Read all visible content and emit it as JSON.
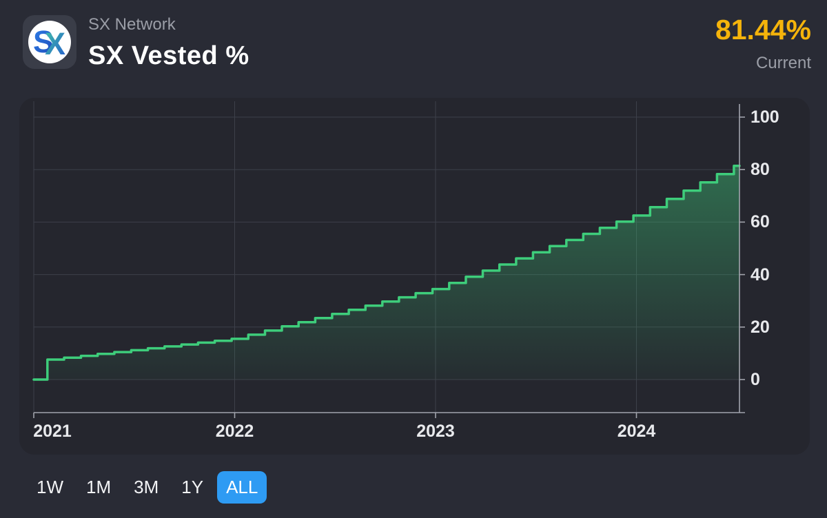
{
  "header": {
    "network_label": "SX Network",
    "title": "SX Vested %",
    "current_value": "81.44%",
    "current_label": "Current",
    "logo": {
      "letter_s": "S",
      "letter_x": "X"
    }
  },
  "colors": {
    "page_background": "#292b35",
    "card_background": "#25262e",
    "line_green": "#3ecd7b",
    "accent_gold": "#f5b40b",
    "active_range_blue": "#2e9bf3",
    "gridline": "#3d404a",
    "axis": "#a2a4ad",
    "tick_label": "#e8e9ec",
    "muted_text": "#9b9ea7"
  },
  "ranges": {
    "options": [
      "1W",
      "1M",
      "3M",
      "1Y",
      "ALL"
    ],
    "selected": "ALL"
  },
  "chart_data": {
    "type": "area",
    "line_style": "step-after",
    "title": "SX Vested %",
    "xlabel": "",
    "ylabel": "",
    "legend": "none",
    "grid": true,
    "y_axis_side": "right",
    "x_ticks": [
      "2021",
      "2022",
      "2023",
      "2024"
    ],
    "x_tick_years": [
      2021,
      2022,
      2023,
      2024
    ],
    "y_ticks": [
      "0",
      "20",
      "40",
      "60",
      "80",
      "100"
    ],
    "y_tick_values": [
      0,
      20,
      40,
      60,
      80,
      100
    ],
    "x_range": [
      2021.0,
      2024.513
    ],
    "ylim": [
      0,
      100
    ],
    "current_value": 81.44,
    "points": [
      [
        2021.0,
        0
      ],
      [
        2021.068,
        7.6
      ],
      [
        2021.151,
        8.32
      ],
      [
        2021.235,
        9.04
      ],
      [
        2021.318,
        9.76
      ],
      [
        2021.401,
        10.47
      ],
      [
        2021.485,
        11.19
      ],
      [
        2021.568,
        11.91
      ],
      [
        2021.651,
        12.63
      ],
      [
        2021.735,
        13.35
      ],
      [
        2021.818,
        14.06
      ],
      [
        2021.901,
        14.78
      ],
      [
        2021.985,
        15.5
      ],
      [
        2022.068,
        17.08
      ],
      [
        2022.151,
        18.67
      ],
      [
        2022.235,
        20.25
      ],
      [
        2022.318,
        21.83
      ],
      [
        2022.401,
        23.42
      ],
      [
        2022.485,
        25.0
      ],
      [
        2022.568,
        26.58
      ],
      [
        2022.651,
        28.17
      ],
      [
        2022.735,
        29.75
      ],
      [
        2022.818,
        31.33
      ],
      [
        2022.901,
        32.92
      ],
      [
        2022.985,
        34.5
      ],
      [
        2023.068,
        36.83
      ],
      [
        2023.151,
        39.17
      ],
      [
        2023.235,
        41.5
      ],
      [
        2023.318,
        43.83
      ],
      [
        2023.401,
        46.17
      ],
      [
        2023.485,
        48.5
      ],
      [
        2023.568,
        50.83
      ],
      [
        2023.651,
        53.17
      ],
      [
        2023.735,
        55.5
      ],
      [
        2023.818,
        57.83
      ],
      [
        2023.901,
        60.17
      ],
      [
        2023.985,
        62.5
      ],
      [
        2024.068,
        65.66
      ],
      [
        2024.151,
        68.81
      ],
      [
        2024.235,
        71.97
      ],
      [
        2024.318,
        75.13
      ],
      [
        2024.401,
        78.28
      ],
      [
        2024.485,
        81.44
      ]
    ]
  }
}
